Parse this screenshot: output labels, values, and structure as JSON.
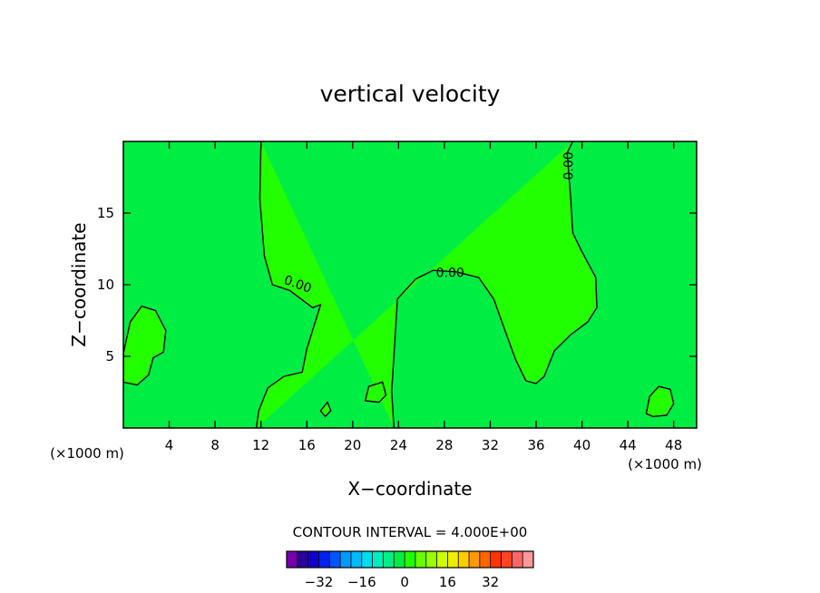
{
  "chart_data": {
    "type": "heatmap",
    "title": "vertical velocity",
    "xlabel": "X−coordinate",
    "ylabel": "Z−coordinate",
    "x_unit": "(×1000 m)",
    "y_unit": "(×1000 m)",
    "xlim": [
      0,
      50
    ],
    "ylim": [
      0,
      20
    ],
    "x_ticks": [
      4,
      8,
      12,
      16,
      20,
      24,
      28,
      32,
      36,
      40,
      44,
      48
    ],
    "y_ticks": [
      5,
      10,
      15
    ],
    "background_field_color": "#00ee44",
    "positive_field_color": "#22ff00",
    "contour_label": "0.00",
    "zero_contours": [
      {
        "label": "0.00",
        "points": [
          [
            12,
            20
          ],
          [
            11.9,
            16
          ],
          [
            12.3,
            12
          ],
          [
            13,
            10
          ],
          [
            14.5,
            9.6
          ],
          [
            16.5,
            8.4
          ],
          [
            17.2,
            8.6
          ],
          [
            16,
            5.5
          ],
          [
            15.6,
            3.9
          ],
          [
            14,
            3.6
          ],
          [
            12.6,
            2.8
          ],
          [
            11.8,
            1.2
          ],
          [
            11.6,
            0
          ]
        ]
      },
      {
        "label": "0.00",
        "points": [
          [
            23.6,
            0
          ],
          [
            23.4,
            2.6
          ],
          [
            23.6,
            5
          ],
          [
            23.9,
            9
          ],
          [
            25.5,
            10.4
          ],
          [
            27,
            11
          ],
          [
            29,
            10.9
          ],
          [
            31,
            10.5
          ],
          [
            32.3,
            9
          ],
          [
            33.2,
            7
          ],
          [
            34.2,
            4.8
          ],
          [
            35.1,
            3.3
          ],
          [
            36,
            3.1
          ],
          [
            36.7,
            3.6
          ],
          [
            37.6,
            5.4
          ],
          [
            39,
            6.5
          ],
          [
            40.5,
            7.4
          ],
          [
            41.3,
            8.4
          ],
          [
            41.2,
            10.5
          ],
          [
            40,
            12.3
          ],
          [
            39.2,
            13.6
          ],
          [
            39,
            16.2
          ],
          [
            38.7,
            19.2
          ],
          [
            39.2,
            20
          ]
        ]
      },
      {
        "points": [
          [
            0,
            5.2
          ],
          [
            0.6,
            7.4
          ],
          [
            1.6,
            8.5
          ],
          [
            2.8,
            8.2
          ],
          [
            3.7,
            6.8
          ],
          [
            3.5,
            5.3
          ],
          [
            2.6,
            4.9
          ],
          [
            2.2,
            3.7
          ],
          [
            1.2,
            3
          ],
          [
            0,
            3.2
          ]
        ]
      },
      {
        "points": [
          [
            45.6,
            1
          ],
          [
            45.9,
            2.2
          ],
          [
            46.7,
            2.9
          ],
          [
            47.7,
            2.7
          ],
          [
            48,
            1.7
          ],
          [
            47.4,
            0.9
          ],
          [
            46.2,
            0.8
          ]
        ]
      },
      {
        "points": [
          [
            21.1,
            1.9
          ],
          [
            21.4,
            2.9
          ],
          [
            22.6,
            3.2
          ],
          [
            22.9,
            2.3
          ],
          [
            22.3,
            1.8
          ]
        ]
      },
      {
        "points": [
          [
            17.2,
            1.2
          ],
          [
            17.8,
            1.8
          ],
          [
            18.1,
            1.2
          ],
          [
            17.6,
            0.8
          ]
        ]
      }
    ],
    "colorbar": {
      "title": "CONTOUR INTERVAL = 4.000E+00",
      "tick_labels": [
        "−32",
        "−16",
        "0",
        "16",
        "32"
      ],
      "tick_values": [
        -32,
        -16,
        0,
        16,
        32
      ],
      "colors": [
        "#7700aa",
        "#2a0099",
        "#1100cc",
        "#0022ee",
        "#0055ff",
        "#0099ff",
        "#00bbff",
        "#00ddee",
        "#00eebb",
        "#00ee88",
        "#00ee44",
        "#22ff00",
        "#66ff00",
        "#99ff00",
        "#ccff00",
        "#eeee00",
        "#ffcc00",
        "#ff9900",
        "#ff6600",
        "#ff3300",
        "#ff4422",
        "#ff6666",
        "#ff9999"
      ]
    }
  }
}
